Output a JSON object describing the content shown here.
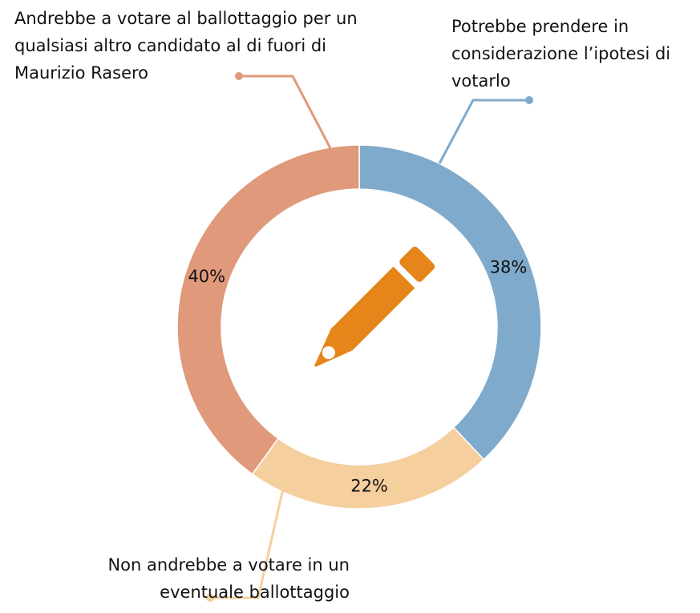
{
  "chart_data": {
    "type": "donut",
    "categories": [
      "Potrebbe prendere in considerazione l’ipotesi di votarlo",
      "Non andrebbe a votare in un eventuale ballottaggio",
      "Andrebbe a votare al ballottaggio per un qualsiasi altro candidato al di fuori di Maurizio Rasero"
    ],
    "values": [
      38,
      22,
      40
    ],
    "value_labels": [
      "38%",
      "22%",
      "40%"
    ],
    "colors": [
      "#7faacb",
      "#f6cf9e",
      "#e0997a"
    ]
  }
}
